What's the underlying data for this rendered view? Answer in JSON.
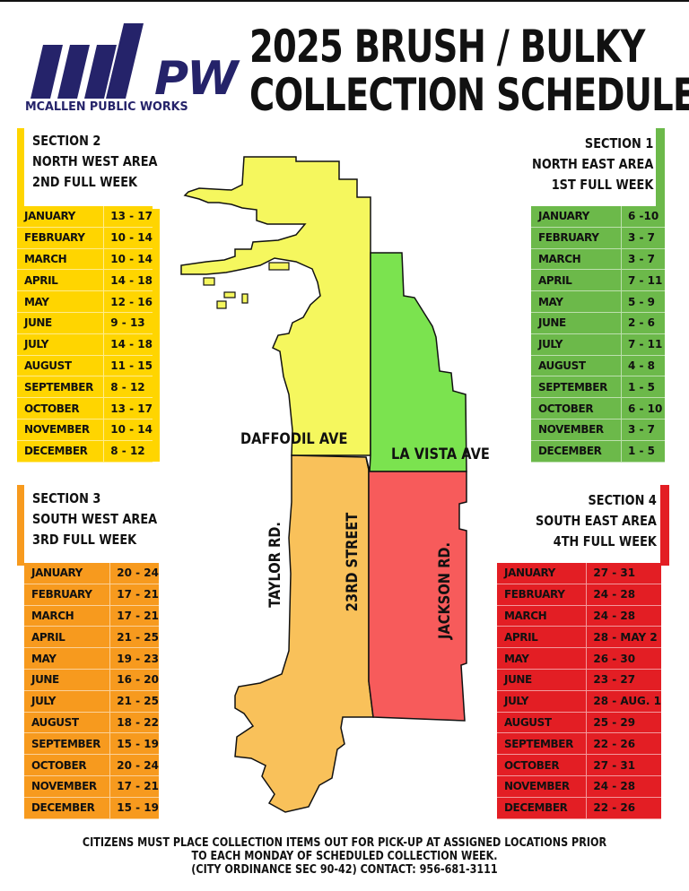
{
  "header": {
    "logo_text": "PW",
    "logo_caption": "MCALLEN PUBLIC WORKS",
    "title_line1": "2025 BRUSH / BULKY",
    "title_line2": "COLLECTION SCHEDULE"
  },
  "colors": {
    "section1_green": "#6cb94a",
    "section2_yellow": "#ffd500",
    "section3_orange": "#f79a1e",
    "section4_red": "#e31e24",
    "map_yellow": "#f5f75e",
    "map_green": "#7be34f",
    "map_orange": "#f9c15a",
    "map_red": "#f75b5b",
    "logo_navy": "#25236a"
  },
  "sections": {
    "s2": {
      "name": "SECTION 2",
      "area": "NORTH WEST AREA",
      "week": "2ND FULL WEEK",
      "rows": [
        {
          "month": "JANUARY",
          "dates": "13 - 17"
        },
        {
          "month": "FEBRUARY",
          "dates": "10 - 14"
        },
        {
          "month": "MARCH",
          "dates": "10 - 14"
        },
        {
          "month": "APRIL",
          "dates": "14 - 18"
        },
        {
          "month": "MAY",
          "dates": "12 - 16"
        },
        {
          "month": "JUNE",
          "dates": "9 - 13"
        },
        {
          "month": "JULY",
          "dates": "14 - 18"
        },
        {
          "month": "AUGUST",
          "dates": "11 - 15"
        },
        {
          "month": "SEPTEMBER",
          "dates": "8 - 12"
        },
        {
          "month": "OCTOBER",
          "dates": "13 - 17"
        },
        {
          "month": "NOVEMBER",
          "dates": "10 - 14"
        },
        {
          "month": "DECEMBER",
          "dates": "8 - 12"
        }
      ]
    },
    "s1": {
      "name": "SECTION 1",
      "area": "NORTH EAST AREA",
      "week": "1ST FULL WEEK",
      "rows": [
        {
          "month": "JANUARY",
          "dates": "6 -10"
        },
        {
          "month": "FEBRUARY",
          "dates": "3 - 7"
        },
        {
          "month": "MARCH",
          "dates": "3 - 7"
        },
        {
          "month": "APRIL",
          "dates": "7 - 11"
        },
        {
          "month": "MAY",
          "dates": "5 - 9"
        },
        {
          "month": "JUNE",
          "dates": "2 - 6"
        },
        {
          "month": "JULY",
          "dates": "7 - 11"
        },
        {
          "month": "AUGUST",
          "dates": "4 - 8"
        },
        {
          "month": "SEPTEMBER",
          "dates": "1 - 5"
        },
        {
          "month": "OCTOBER",
          "dates": "6 - 10"
        },
        {
          "month": "NOVEMBER",
          "dates": "3 - 7"
        },
        {
          "month": "DECEMBER",
          "dates": "1 - 5"
        }
      ]
    },
    "s3": {
      "name": "SECTION 3",
      "area": "SOUTH WEST AREA",
      "week": "3RD FULL WEEK",
      "rows": [
        {
          "month": "JANUARY",
          "dates": "20 - 24"
        },
        {
          "month": "FEBRUARY",
          "dates": "17 - 21"
        },
        {
          "month": "MARCH",
          "dates": "17 - 21"
        },
        {
          "month": "APRIL",
          "dates": "21 - 25"
        },
        {
          "month": "MAY",
          "dates": "19 - 23"
        },
        {
          "month": "JUNE",
          "dates": "16 - 20"
        },
        {
          "month": "JULY",
          "dates": "21 - 25"
        },
        {
          "month": "AUGUST",
          "dates": "18 - 22"
        },
        {
          "month": "SEPTEMBER",
          "dates": "15 - 19"
        },
        {
          "month": "OCTOBER",
          "dates": "20 - 24"
        },
        {
          "month": "NOVEMBER",
          "dates": "17 - 21"
        },
        {
          "month": "DECEMBER",
          "dates": "15 - 19"
        }
      ]
    },
    "s4": {
      "name": "SECTION 4",
      "area": "SOUTH EAST AREA",
      "week": "4TH FULL WEEK",
      "rows": [
        {
          "month": "JANUARY",
          "dates": "27 - 31"
        },
        {
          "month": "FEBRUARY",
          "dates": "24 - 28"
        },
        {
          "month": "MARCH",
          "dates": "24 - 28"
        },
        {
          "month": "APRIL",
          "dates": "28 - MAY 2"
        },
        {
          "month": "MAY",
          "dates": "26 - 30"
        },
        {
          "month": "JUNE",
          "dates": "23 - 27"
        },
        {
          "month": "JULY",
          "dates": "28 - AUG. 1"
        },
        {
          "month": "AUGUST",
          "dates": "25 - 29"
        },
        {
          "month": "SEPTEMBER",
          "dates": "22 - 26"
        },
        {
          "month": "OCTOBER",
          "dates": "27 - 31"
        },
        {
          "month": "NOVEMBER",
          "dates": "24 - 28"
        },
        {
          "month": "DECEMBER",
          "dates": "22 - 26"
        }
      ]
    }
  },
  "map": {
    "daffodil": "DAFFODIL AVE",
    "la_vista": "LA VISTA AVE",
    "taylor": "TAYLOR RD.",
    "twenty_third": "23RD STREET",
    "jackson": "JACKSON RD."
  },
  "footer": {
    "line1": "CITIZENS MUST PLACE COLLECTION ITEMS OUT FOR PICK-UP AT ASSIGNED LOCATIONS PRIOR",
    "line2": "TO EACH MONDAY OF SCHEDULED COLLECTION WEEK.",
    "line3": "(CITY ORDINANCE SEC 90-42) CONTACT: 956-681-3111"
  }
}
